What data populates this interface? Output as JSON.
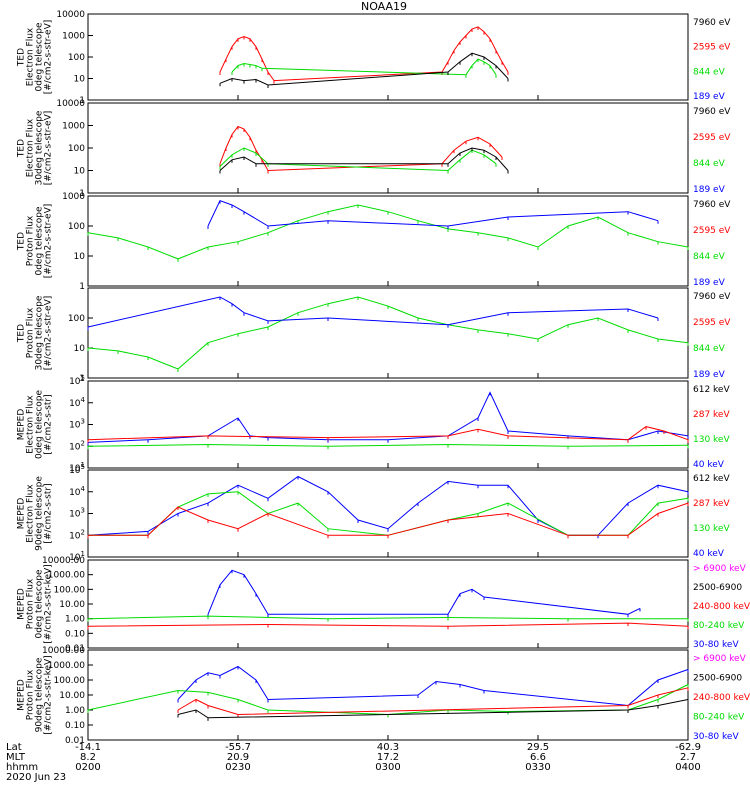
{
  "title": "NOAA19",
  "date_label": "2020 Jun 23",
  "xaxis": {
    "row_labels": [
      "Lat",
      "MLT",
      "hhmm"
    ],
    "ticks": [
      {
        "lat": "-14.1",
        "mlt": "8.2",
        "time": "0200"
      },
      {
        "lat": "-55.7",
        "mlt": "20.9",
        "time": "0230"
      },
      {
        "lat": "40.3",
        "mlt": "17.2",
        "time": "0300"
      },
      {
        "lat": "29.5",
        "mlt": "6.6",
        "time": "0330"
      },
      {
        "lat": "-62.9",
        "mlt": "2.7",
        "time": "0400"
      }
    ]
  },
  "colors": {
    "black": "#000000",
    "red": "#ff0000",
    "green": "#00dd00",
    "blue": "#0000ff",
    "magenta": "#ff00ff"
  },
  "chart_data": [
    {
      "type": "line",
      "ylabel": [
        "TED",
        "Electron Flux",
        "0deg telescope",
        "[#/cm2-s-str-eV]"
      ],
      "yscale": "log",
      "ylim": [
        1,
        10000
      ],
      "ytick_labels": [
        "10000",
        "1000",
        "100",
        "10",
        "1"
      ],
      "legend": [
        {
          "name": "7960 eV",
          "color": "black"
        },
        {
          "name": "2595 eV",
          "color": "red"
        },
        {
          "name": "844 eV",
          "color": "green"
        },
        {
          "name": "189 eV",
          "color": "blue"
        }
      ],
      "series": [
        {
          "name": "2595 eV",
          "color": "red",
          "x": [
            0.22,
            0.23,
            0.24,
            0.25,
            0.26,
            0.27,
            0.28,
            0.29,
            0.3,
            0.31,
            0.59,
            0.6,
            0.61,
            0.62,
            0.63,
            0.64,
            0.65,
            0.66,
            0.67,
            0.68,
            0.69,
            0.7
          ],
          "y": [
            20,
            80,
            300,
            700,
            900,
            700,
            300,
            80,
            20,
            8,
            20,
            60,
            200,
            500,
            1000,
            2000,
            2500,
            1500,
            700,
            200,
            60,
            20
          ]
        },
        {
          "name": "844 eV",
          "color": "green",
          "x": [
            0.24,
            0.25,
            0.26,
            0.27,
            0.28,
            0.29,
            0.63,
            0.64,
            0.65,
            0.66,
            0.67,
            0.68
          ],
          "y": [
            20,
            40,
            50,
            45,
            40,
            30,
            15,
            40,
            80,
            60,
            40,
            15
          ]
        },
        {
          "name": "7960 eV",
          "color": "black",
          "x": [
            0.22,
            0.24,
            0.26,
            0.28,
            0.3,
            0.6,
            0.62,
            0.64,
            0.66,
            0.68,
            0.7
          ],
          "y": [
            6,
            10,
            8,
            9,
            5,
            20,
            60,
            150,
            100,
            40,
            10
          ]
        }
      ]
    },
    {
      "type": "line",
      "ylabel": [
        "TED",
        "Electron Flux",
        "30deg telescope",
        "[#/cm2-s-str-eV]"
      ],
      "yscale": "log",
      "ylim": [
        1,
        10000
      ],
      "ytick_labels": [
        "10000",
        "1000",
        "100",
        "10",
        "1"
      ],
      "legend": [
        {
          "name": "7960 eV",
          "color": "black"
        },
        {
          "name": "2595 eV",
          "color": "red"
        },
        {
          "name": "844 eV",
          "color": "green"
        },
        {
          "name": "189 eV",
          "color": "blue"
        }
      ],
      "series": [
        {
          "name": "2595 eV",
          "color": "red",
          "x": [
            0.22,
            0.23,
            0.24,
            0.25,
            0.26,
            0.27,
            0.28,
            0.29,
            0.3,
            0.59,
            0.61,
            0.63,
            0.65,
            0.67,
            0.69
          ],
          "y": [
            20,
            100,
            400,
            900,
            700,
            300,
            80,
            30,
            10,
            20,
            80,
            200,
            300,
            150,
            40
          ]
        },
        {
          "name": "844 eV",
          "color": "green",
          "x": [
            0.22,
            0.24,
            0.26,
            0.28,
            0.3,
            0.6,
            0.62,
            0.64,
            0.66,
            0.68
          ],
          "y": [
            15,
            50,
            100,
            60,
            20,
            10,
            30,
            80,
            50,
            20
          ]
        },
        {
          "name": "7960 eV",
          "color": "black",
          "x": [
            0.22,
            0.24,
            0.26,
            0.28,
            0.6,
            0.62,
            0.64,
            0.66,
            0.68,
            0.7
          ],
          "y": [
            10,
            30,
            40,
            20,
            20,
            60,
            100,
            80,
            40,
            10
          ]
        }
      ]
    },
    {
      "type": "line",
      "ylabel": [
        "TED",
        "Proton Flux",
        "0deg telescope",
        "[#/cm2-s-str-eV]"
      ],
      "yscale": "log",
      "ylim": [
        1,
        1000
      ],
      "ytick_labels": [
        "1000",
        "100",
        "10",
        "1"
      ],
      "legend": [
        {
          "name": "7960 eV",
          "color": "black"
        },
        {
          "name": "2595 eV",
          "color": "red"
        },
        {
          "name": "844 eV",
          "color": "green"
        },
        {
          "name": "189 eV",
          "color": "blue"
        }
      ],
      "series": [
        {
          "name": "844 eV",
          "color": "green",
          "x": [
            0.0,
            0.05,
            0.1,
            0.15,
            0.2,
            0.25,
            0.3,
            0.35,
            0.4,
            0.45,
            0.5,
            0.55,
            0.6,
            0.65,
            0.7,
            0.75,
            0.8,
            0.85,
            0.9,
            0.95,
            1.0
          ],
          "y": [
            60,
            40,
            20,
            8,
            20,
            30,
            60,
            150,
            300,
            500,
            300,
            150,
            80,
            60,
            40,
            20,
            100,
            200,
            60,
            30,
            20
          ]
        },
        {
          "name": "189 eV",
          "color": "blue",
          "x": [
            0.2,
            0.22,
            0.24,
            0.26,
            0.3,
            0.4,
            0.6,
            0.7,
            0.9,
            0.95
          ],
          "y": [
            100,
            700,
            500,
            300,
            100,
            150,
            100,
            200,
            300,
            150
          ]
        }
      ]
    },
    {
      "type": "line",
      "ylabel": [
        "TED",
        "Proton Flux",
        "30deg telescope",
        "[#/cm2-s-str-eV]"
      ],
      "yscale": "log",
      "ylim": [
        1,
        1000
      ],
      "ytick_labels": [
        "100",
        "10",
        "1"
      ],
      "legend": [
        {
          "name": "7960 eV",
          "color": "black"
        },
        {
          "name": "2595 eV",
          "color": "red"
        },
        {
          "name": "844 eV",
          "color": "green"
        },
        {
          "name": "189 eV",
          "color": "blue"
        }
      ],
      "series": [
        {
          "name": "844 eV",
          "color": "green",
          "x": [
            0.0,
            0.05,
            0.1,
            0.15,
            0.2,
            0.25,
            0.3,
            0.35,
            0.4,
            0.45,
            0.5,
            0.55,
            0.6,
            0.65,
            0.7,
            0.75,
            0.8,
            0.85,
            0.9,
            0.95,
            1.0
          ],
          "y": [
            10,
            8,
            5,
            2,
            15,
            30,
            50,
            150,
            300,
            500,
            250,
            100,
            60,
            40,
            30,
            20,
            60,
            100,
            40,
            20,
            15
          ]
        },
        {
          "name": "189 eV",
          "color": "blue",
          "x": [
            0.0,
            0.22,
            0.24,
            0.26,
            0.3,
            0.4,
            0.6,
            0.7,
            0.9,
            0.95
          ],
          "y": [
            50,
            500,
            300,
            150,
            80,
            100,
            60,
            150,
            200,
            100
          ]
        }
      ]
    },
    {
      "type": "line",
      "ylabel": [
        "MEPED",
        "Electron Flux",
        "0deg telescope",
        "[#/cm2-s-str]"
      ],
      "yscale": "log",
      "ylim": [
        10,
        100000
      ],
      "ytick_labels": [
        "10^5",
        "10^4",
        "10^3",
        "10^2",
        "10^1"
      ],
      "legend": [
        {
          "name": "612 keV",
          "color": "black"
        },
        {
          "name": "287 keV",
          "color": "red"
        },
        {
          "name": "130 keV",
          "color": "green"
        },
        {
          "name": "40 keV",
          "color": "blue"
        }
      ],
      "series": [
        {
          "name": "40 keV",
          "color": "blue",
          "x": [
            0.0,
            0.1,
            0.2,
            0.25,
            0.27,
            0.3,
            0.4,
            0.5,
            0.6,
            0.65,
            0.67,
            0.7,
            0.8,
            0.9,
            0.95,
            1.0
          ],
          "y": [
            150,
            200,
            300,
            2000,
            300,
            250,
            200,
            200,
            300,
            2000,
            30000,
            500,
            300,
            200,
            500,
            300
          ]
        },
        {
          "name": "287 keV",
          "color": "red",
          "x": [
            0.0,
            0.2,
            0.4,
            0.6,
            0.65,
            0.7,
            0.9,
            0.93,
            0.96,
            1.0
          ],
          "y": [
            200,
            300,
            250,
            300,
            600,
            300,
            200,
            800,
            500,
            200
          ]
        },
        {
          "name": "130 keV",
          "color": "green",
          "x": [
            0.0,
            0.2,
            0.4,
            0.6,
            0.8,
            1.0
          ],
          "y": [
            100,
            120,
            100,
            120,
            100,
            110
          ]
        }
      ]
    },
    {
      "type": "line",
      "ylabel": [
        "MEPED",
        "Electron Flux",
        "90deg telescope",
        "[#/cm2-s-str]"
      ],
      "yscale": "log",
      "ylim": [
        10,
        100000
      ],
      "ytick_labels": [
        "10^5",
        "10^4",
        "10^3",
        "10^2",
        "10^1"
      ],
      "legend": [
        {
          "name": "612 keV",
          "color": "black"
        },
        {
          "name": "287 keV",
          "color": "red"
        },
        {
          "name": "130 keV",
          "color": "green"
        },
        {
          "name": "40 keV",
          "color": "blue"
        }
      ],
      "series": [
        {
          "name": "40 keV",
          "color": "blue",
          "x": [
            0.0,
            0.1,
            0.15,
            0.2,
            0.25,
            0.3,
            0.35,
            0.4,
            0.45,
            0.5,
            0.55,
            0.6,
            0.65,
            0.7,
            0.75,
            0.8,
            0.85,
            0.9,
            0.95,
            1.0
          ],
          "y": [
            100,
            150,
            1000,
            3000,
            20000,
            5000,
            50000,
            10000,
            500,
            200,
            3000,
            30000,
            20000,
            20000,
            500,
            100,
            100,
            3000,
            20000,
            10000
          ]
        },
        {
          "name": "130 keV",
          "color": "green",
          "x": [
            0.0,
            0.1,
            0.15,
            0.2,
            0.25,
            0.3,
            0.35,
            0.4,
            0.5,
            0.6,
            0.65,
            0.7,
            0.8,
            0.9,
            0.95,
            1.0
          ],
          "y": [
            100,
            100,
            2000,
            8000,
            10000,
            1000,
            3000,
            200,
            100,
            500,
            1000,
            3000,
            100,
            100,
            3000,
            5000
          ]
        },
        {
          "name": "287 keV",
          "color": "red",
          "x": [
            0.0,
            0.1,
            0.15,
            0.2,
            0.25,
            0.3,
            0.4,
            0.5,
            0.6,
            0.7,
            0.8,
            0.9,
            0.95,
            1.0
          ],
          "y": [
            100,
            100,
            2000,
            500,
            200,
            1000,
            100,
            100,
            500,
            1000,
            100,
            100,
            1000,
            3000
          ]
        }
      ]
    },
    {
      "type": "line",
      "ylabel": [
        "MEPED",
        "Proton Flux",
        "0deg telescope",
        "[#/cm2-s-str-keV]"
      ],
      "yscale": "log",
      "ylim": [
        0.01,
        10000
      ],
      "ytick_labels": [
        "10000.00",
        "1000.00",
        "100.00",
        "10.00",
        "1.00",
        "0.10",
        "0.01"
      ],
      "legend": [
        {
          "name": "> 6900 keV",
          "color": "magenta"
        },
        {
          "name": "2500-6900",
          "color": "black"
        },
        {
          "name": "240-800 keV",
          "color": "red"
        },
        {
          "name": "80-240 keV",
          "color": "green"
        },
        {
          "name": "30-80 keV",
          "color": "blue"
        }
      ],
      "series": [
        {
          "name": "30-80 keV",
          "color": "blue",
          "x": [
            0.2,
            0.22,
            0.24,
            0.26,
            0.28,
            0.3,
            0.6,
            0.62,
            0.64,
            0.66,
            0.9,
            0.92
          ],
          "y": [
            2,
            200,
            2000,
            1000,
            50,
            2,
            2,
            50,
            100,
            30,
            2,
            5
          ]
        },
        {
          "name": "80-240 keV",
          "color": "green",
          "x": [
            0.0,
            0.2,
            0.4,
            0.6,
            0.8,
            1.0
          ],
          "y": [
            1,
            1.5,
            1,
            1.2,
            1,
            1
          ]
        },
        {
          "name": "240-800 keV",
          "color": "red",
          "x": [
            0.0,
            0.3,
            0.6,
            0.9,
            1.0
          ],
          "y": [
            0.3,
            0.4,
            0.3,
            0.5,
            0.3
          ]
        }
      ]
    },
    {
      "type": "line",
      "ylabel": [
        "MEPED",
        "Proton Flux",
        "90deg telescope",
        "[#/cm2-s-str-keV]"
      ],
      "yscale": "log",
      "ylim": [
        0.01,
        10000
      ],
      "ytick_labels": [
        "10000.00",
        "1000.00",
        "100.00",
        "10.00",
        "1.00",
        "0.10",
        "0.01"
      ],
      "legend": [
        {
          "name": "> 6900 keV",
          "color": "magenta"
        },
        {
          "name": "2500-6900",
          "color": "black"
        },
        {
          "name": "240-800 keV",
          "color": "red"
        },
        {
          "name": "80-240 keV",
          "color": "green"
        },
        {
          "name": "30-80 keV",
          "color": "blue"
        }
      ],
      "series": [
        {
          "name": "30-80 keV",
          "color": "blue",
          "x": [
            0.15,
            0.18,
            0.2,
            0.22,
            0.25,
            0.28,
            0.3,
            0.55,
            0.58,
            0.62,
            0.66,
            0.9,
            0.95,
            1.0
          ],
          "y": [
            5,
            100,
            300,
            200,
            800,
            100,
            5,
            10,
            80,
            50,
            20,
            2,
            100,
            500
          ]
        },
        {
          "name": "80-240 keV",
          "color": "green",
          "x": [
            0.0,
            0.15,
            0.2,
            0.25,
            0.3,
            0.5,
            0.6,
            0.7,
            0.9,
            0.95,
            1.0
          ],
          "y": [
            1,
            20,
            15,
            5,
            1,
            0.5,
            1,
            0.8,
            1,
            5,
            50
          ]
        },
        {
          "name": "240-800 keV",
          "color": "red",
          "x": [
            0.15,
            0.18,
            0.2,
            0.25,
            0.9,
            0.95,
            1.0
          ],
          "y": [
            1,
            5,
            2,
            0.5,
            2,
            10,
            30
          ]
        },
        {
          "name": "2500-6900",
          "color": "black",
          "x": [
            0.15,
            0.18,
            0.2,
            0.9,
            0.95,
            1.0
          ],
          "y": [
            0.5,
            1,
            0.3,
            1,
            2,
            5
          ]
        }
      ]
    }
  ]
}
